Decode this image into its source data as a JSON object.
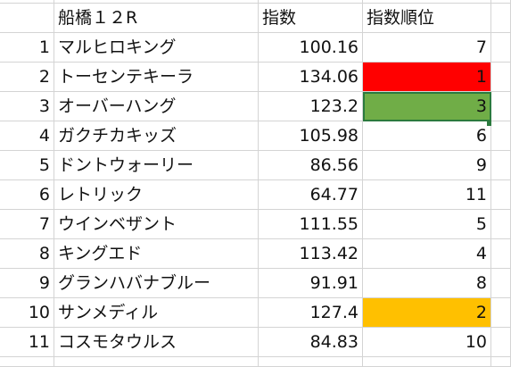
{
  "sheet": {
    "headers": [
      "",
      "船橋１２R",
      "指数",
      "指数順位",
      ""
    ],
    "rows": [
      {
        "n": "1",
        "name": "マルヒロキング",
        "index": "100.16",
        "rank": "7",
        "fill": ""
      },
      {
        "n": "2",
        "name": "トーセンテキーラ",
        "index": "134.06",
        "rank": "1",
        "fill": "#ff0000"
      },
      {
        "n": "3",
        "name": "オーバーハング",
        "index": "123.2",
        "rank": "3",
        "fill": "#70ad47"
      },
      {
        "n": "4",
        "name": "ガクチカキッズ",
        "index": "105.98",
        "rank": "6",
        "fill": ""
      },
      {
        "n": "5",
        "name": "ドントウォーリー",
        "index": "86.56",
        "rank": "9",
        "fill": ""
      },
      {
        "n": "6",
        "name": "レトリック",
        "index": "64.77",
        "rank": "11",
        "fill": ""
      },
      {
        "n": "7",
        "name": "ウインベザント",
        "index": "111.55",
        "rank": "5",
        "fill": ""
      },
      {
        "n": "8",
        "name": "キングエド",
        "index": "113.42",
        "rank": "4",
        "fill": ""
      },
      {
        "n": "9",
        "name": "グランハバナブルー",
        "index": "91.91",
        "rank": "8",
        "fill": ""
      },
      {
        "n": "10",
        "name": "サンメディル",
        "index": "127.4",
        "rank": "2",
        "fill": "#ffc000"
      },
      {
        "n": "11",
        "name": "コスモタウルス",
        "index": "84.83",
        "rank": "10",
        "fill": ""
      }
    ]
  }
}
